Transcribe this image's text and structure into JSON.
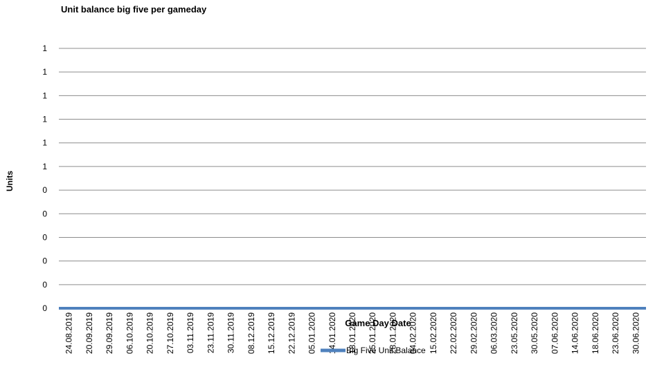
{
  "chart_data": {
    "type": "line",
    "title": "Unit balance big five per gameday",
    "ylabel": "Units",
    "xlabel": "Game Day Date",
    "y_tick_labels": [
      "0",
      "0",
      "0",
      "0",
      "0",
      "0",
      "1",
      "1",
      "1",
      "1",
      "1",
      "1"
    ],
    "ylim": [
      0,
      1.1
    ],
    "grid": true,
    "legend_position": "bottom",
    "x": [
      "24.08.2019",
      "20.09.2019",
      "29.09.2019",
      "06.10.2019",
      "20.10.2019",
      "27.10.2019",
      "03.11.2019",
      "23.11.2019",
      "30.11.2019",
      "08.12.2019",
      "15.12.2019",
      "22.12.2019",
      "05.01.2020",
      "14.01.2020",
      "18.01.2020",
      "25.01.2020",
      "28.01.2020",
      "04.02.2020",
      "15.02.2020",
      "22.02.2020",
      "29.02.2020",
      "06.03.2020",
      "23.05.2020",
      "30.05.2020",
      "07.06.2020",
      "14.06.2020",
      "18.06.2020",
      "23.06.2020",
      "30.06.2020"
    ],
    "series": [
      {
        "name": "Big Five Unit Balance",
        "color": "#4f81bd",
        "values": [
          0,
          0,
          0,
          0,
          0,
          0,
          0,
          0,
          0,
          0,
          0,
          0,
          0,
          0,
          0,
          0,
          0,
          0,
          0,
          0,
          0,
          0,
          0,
          0,
          0,
          0,
          0,
          0,
          0
        ]
      }
    ]
  }
}
